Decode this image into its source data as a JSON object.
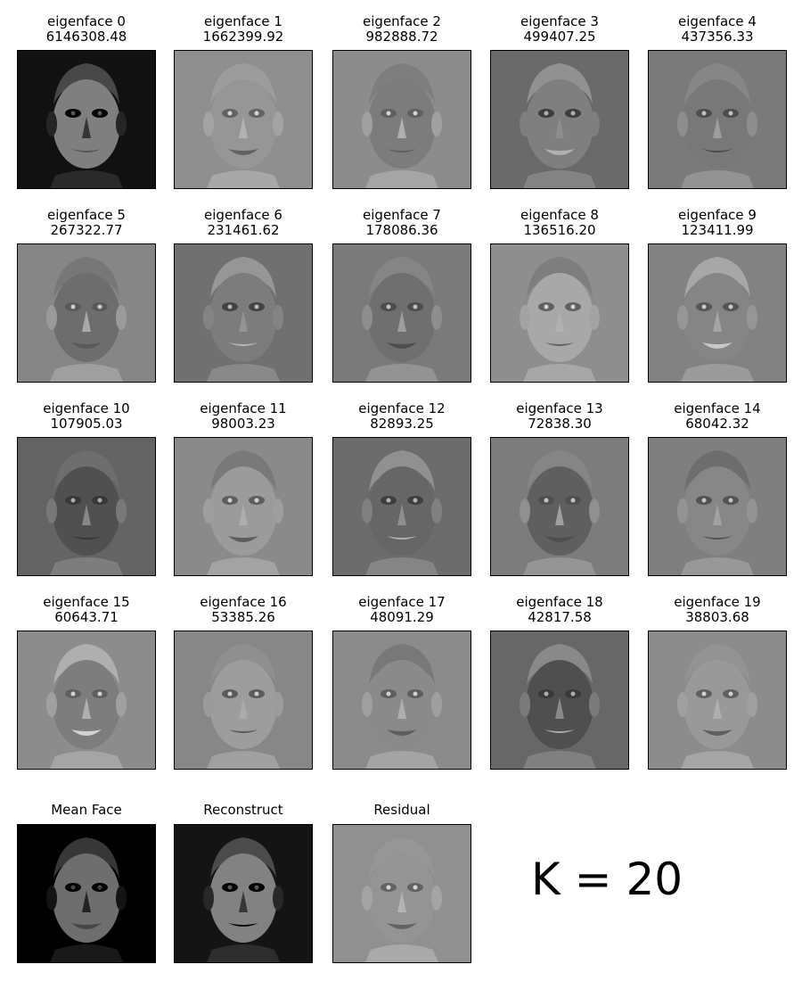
{
  "eigenfaces": [
    {
      "label": "eigenface 0",
      "value": "6146308.48",
      "bg": "#111111"
    },
    {
      "label": "eigenface 1",
      "value": "1662399.92",
      "bg": "#8f8f8f"
    },
    {
      "label": "eigenface 2",
      "value": "982888.72",
      "bg": "#8c8c8c"
    },
    {
      "label": "eigenface 3",
      "value": "499407.25",
      "bg": "#6a6a6a"
    },
    {
      "label": "eigenface 4",
      "value": "437356.33",
      "bg": "#7a7a7a"
    },
    {
      "label": "eigenface 5",
      "value": "267322.77",
      "bg": "#868686"
    },
    {
      "label": "eigenface 6",
      "value": "231461.62",
      "bg": "#707070"
    },
    {
      "label": "eigenface 7",
      "value": "178086.36",
      "bg": "#7a7a7a"
    },
    {
      "label": "eigenface 8",
      "value": "136516.20",
      "bg": "#8e8e8e"
    },
    {
      "label": "eigenface 9",
      "value": "123411.99",
      "bg": "#828282"
    },
    {
      "label": "eigenface 10",
      "value": "107905.03",
      "bg": "#646464"
    },
    {
      "label": "eigenface 11",
      "value": "98003.23",
      "bg": "#8a8a8a"
    },
    {
      "label": "eigenface 12",
      "value": "82893.25",
      "bg": "#6c6c6c"
    },
    {
      "label": "eigenface 13",
      "value": "72838.30",
      "bg": "#7c7c7c"
    },
    {
      "label": "eigenface 14",
      "value": "68042.32",
      "bg": "#7f7f7f"
    },
    {
      "label": "eigenface 15",
      "value": "60643.71",
      "bg": "#8c8c8c"
    },
    {
      "label": "eigenface 16",
      "value": "53385.26",
      "bg": "#878787"
    },
    {
      "label": "eigenface 17",
      "value": "48091.29",
      "bg": "#8b8b8b"
    },
    {
      "label": "eigenface 18",
      "value": "42817.58",
      "bg": "#676767"
    },
    {
      "label": "eigenface 19",
      "value": "38803.68",
      "bg": "#8c8c8c"
    }
  ],
  "bottom": [
    {
      "label": "Mean Face",
      "bg": "#000000"
    },
    {
      "label": "Reconstruct",
      "bg": "#141414"
    },
    {
      "label": "Residual",
      "bg": "#909090"
    }
  ],
  "k_label": "K = 20"
}
